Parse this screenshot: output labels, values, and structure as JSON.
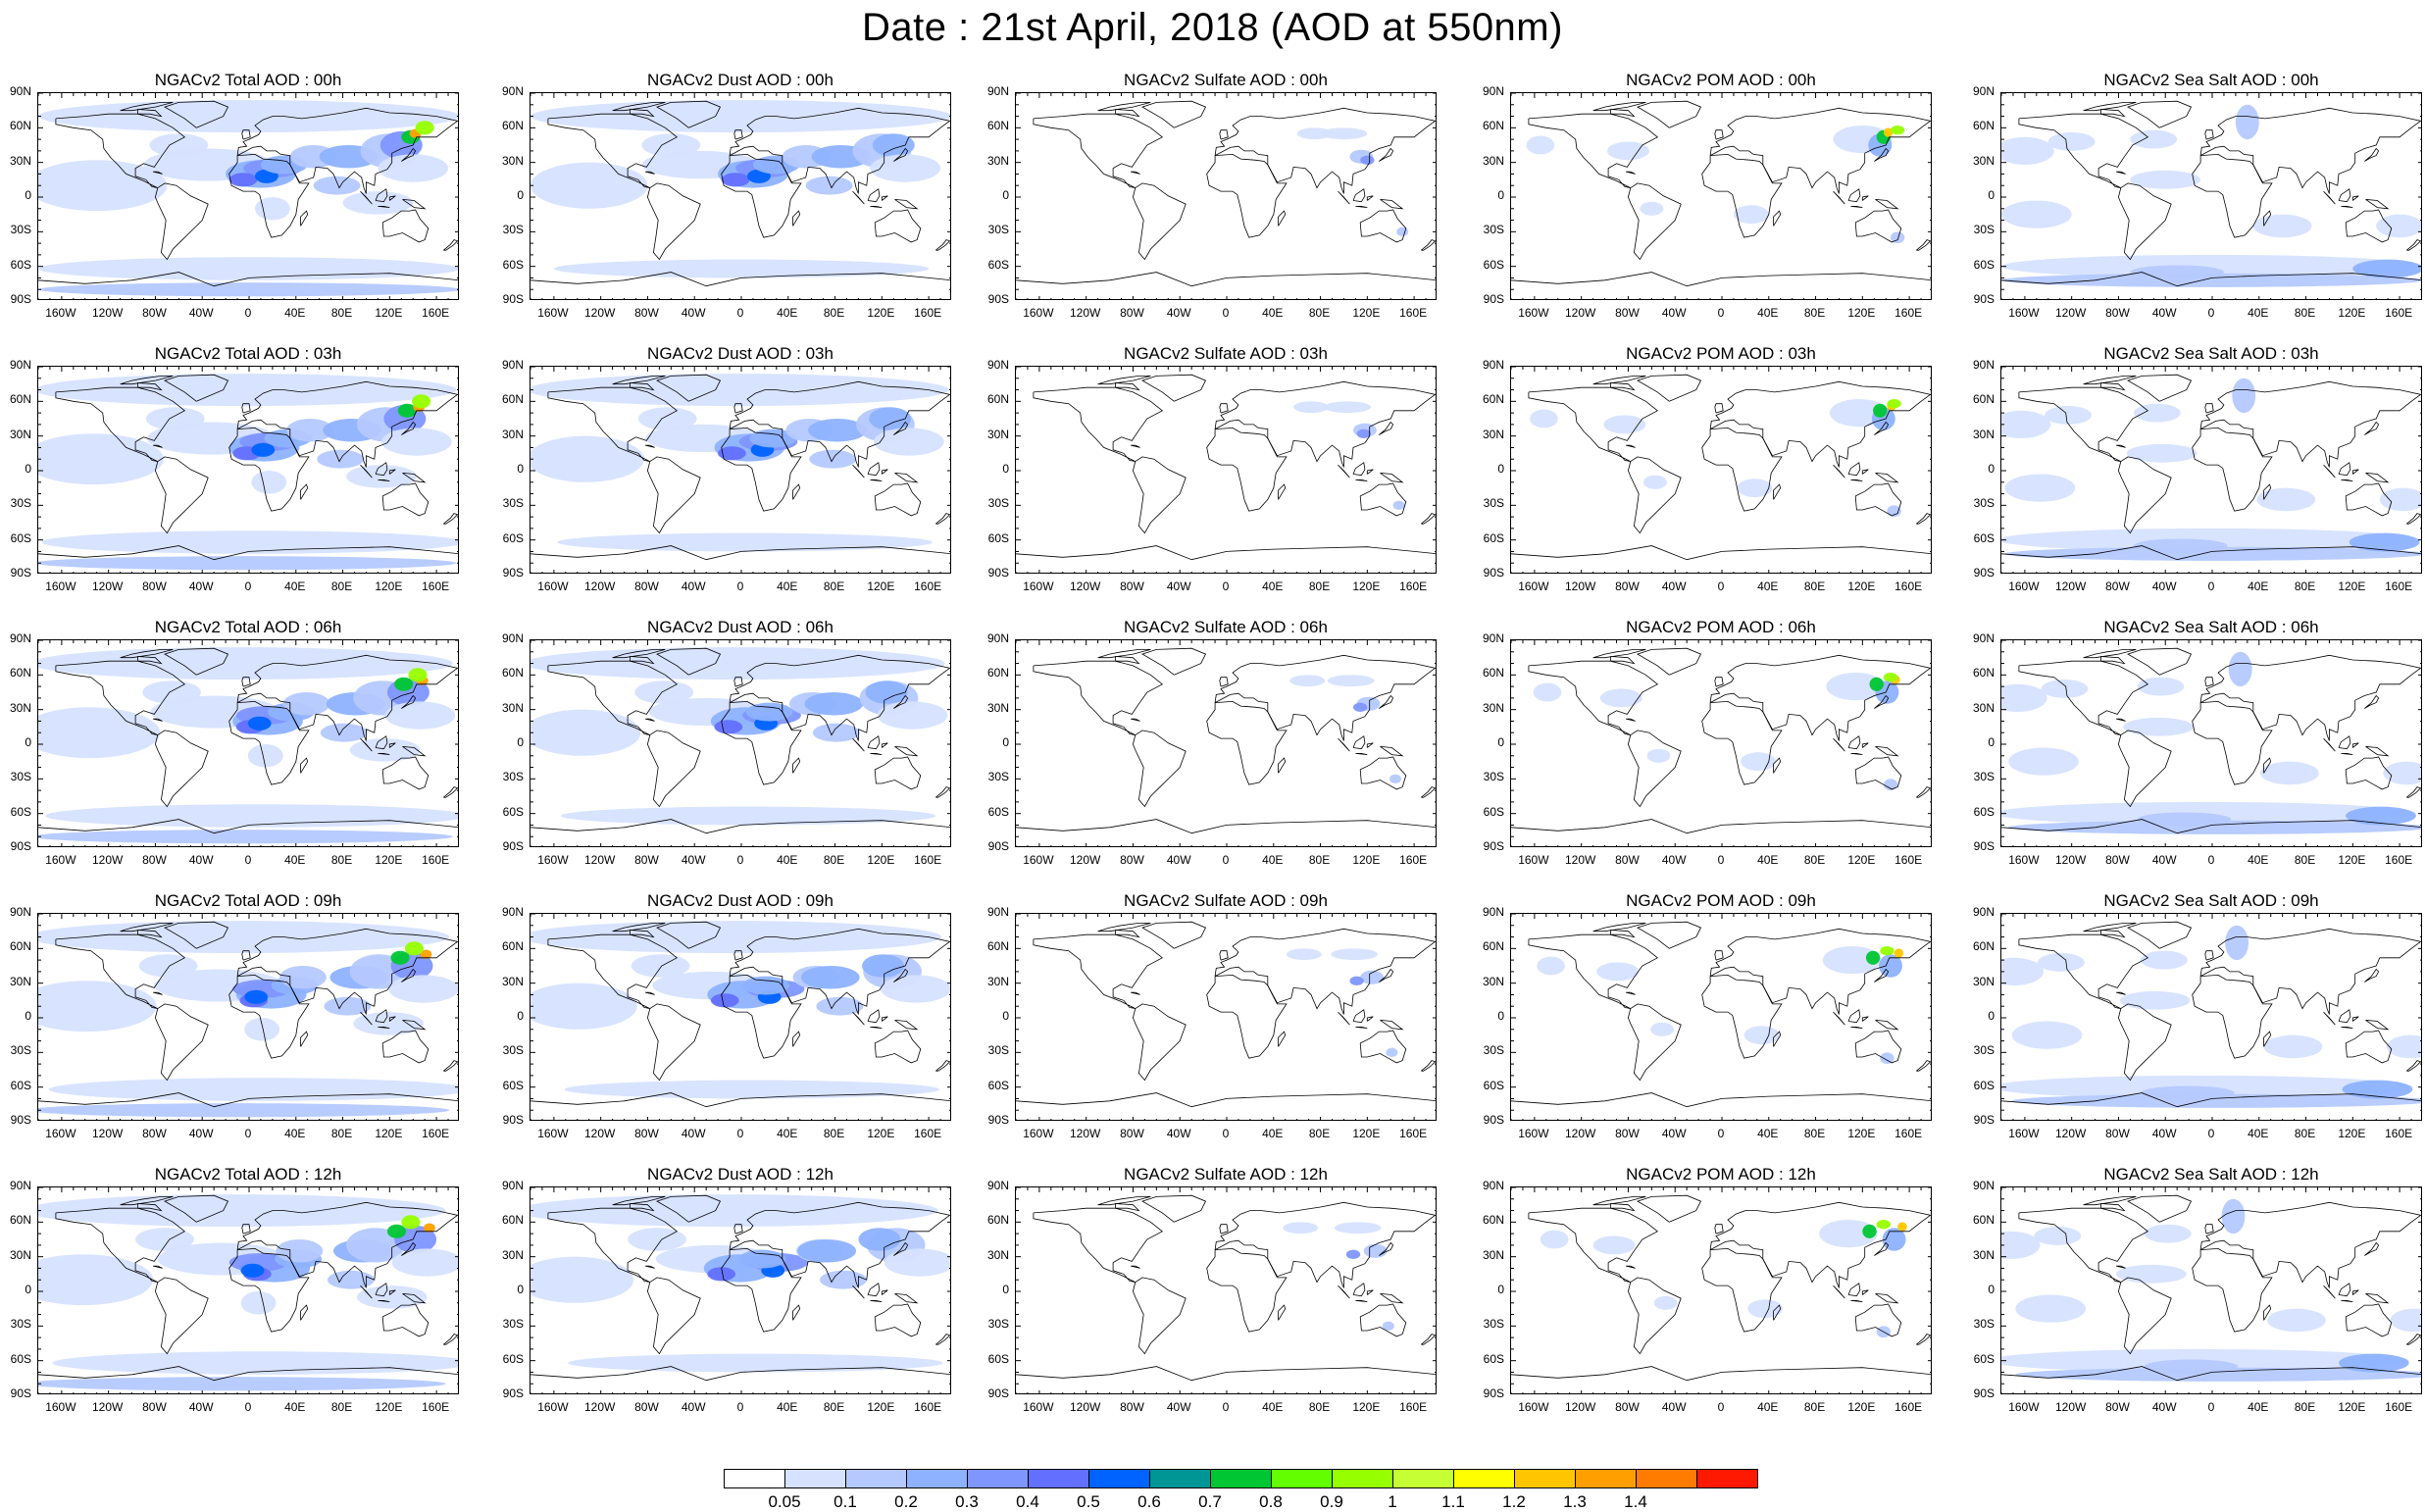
{
  "title": "Date : 21st April, 2018 (AOD at 550nm)",
  "columns": [
    {
      "key": "total",
      "labels": [
        "NGACv2 Total AOD : 00h",
        "NGACv2 Total AOD : 03h",
        "NGACv2 Total AOD : 06h",
        "NGACv2 Total AOD : 09h",
        "NGACv2 Total AOD  : 12h"
      ]
    },
    {
      "key": "dust",
      "labels": [
        "NGACv2 Dust AOD : 00h",
        "NGACv2 Dust AOD : 03h",
        "NGACv2 Dust AOD : 06h",
        "NGACv2 Dust AOD : 09h",
        "NGACv2 Dust AOD : 12h"
      ]
    },
    {
      "key": "sulfate",
      "labels": [
        "NGACv2 Sulfate AOD : 00h",
        "NGACv2 Sulfate AOD : 03h",
        "NGACv2 Sulfate AOD : 06h",
        "NGACv2 Sulfate AOD : 09h",
        "NGACv2 Sulfate AOD : 12h"
      ]
    },
    {
      "key": "pom",
      "labels": [
        "NGACv2 POM AOD : 00h",
        "NGACv2 POM AOD : 03h",
        "NGACv2 POM AOD : 06h",
        "NGACv2 POM AOD : 09h",
        "NGACv2 POM  AOD : 12h"
      ]
    },
    {
      "key": "seasalt",
      "labels": [
        "NGACv2 Sea Salt AOD : 00h",
        "NGACv2 Sea Salt AOD : 03h",
        "NGACv2 Sea Salt AOD : 06h",
        "NGACv2 Sea Salt  AOD : 09h",
        "NGACv2 Sea Salt AOD : 12h"
      ]
    }
  ],
  "lat_ticks": [
    "90N",
    "60N",
    "30N",
    "0",
    "30S",
    "60S",
    "90S"
  ],
  "lon_ticks": [
    "160W",
    "120W",
    "80W",
    "40W",
    "0",
    "40E",
    "80E",
    "120E",
    "160E"
  ],
  "lon_tick_values": [
    -160,
    -120,
    -80,
    -40,
    0,
    40,
    80,
    120,
    160
  ],
  "colorbar": {
    "labels": [
      "0.05",
      "0.1",
      "0.2",
      "0.3",
      "0.4",
      "0.5",
      "0.6",
      "0.7",
      "0.8",
      "0.9",
      "1",
      "1.1",
      "1.2",
      "1.3",
      "1.4"
    ],
    "colors": [
      "#ffffff",
      "#d6e2ff",
      "#b5c9ff",
      "#8eb2ff",
      "#7f96ff",
      "#6370ff",
      "#0063ff",
      "#009696",
      "#00c633",
      "#63ff00",
      "#96ff00",
      "#c6ff33",
      "#ffff00",
      "#ffc600",
      "#ffa000",
      "#ff7c00",
      "#ff1900"
    ]
  }
}
